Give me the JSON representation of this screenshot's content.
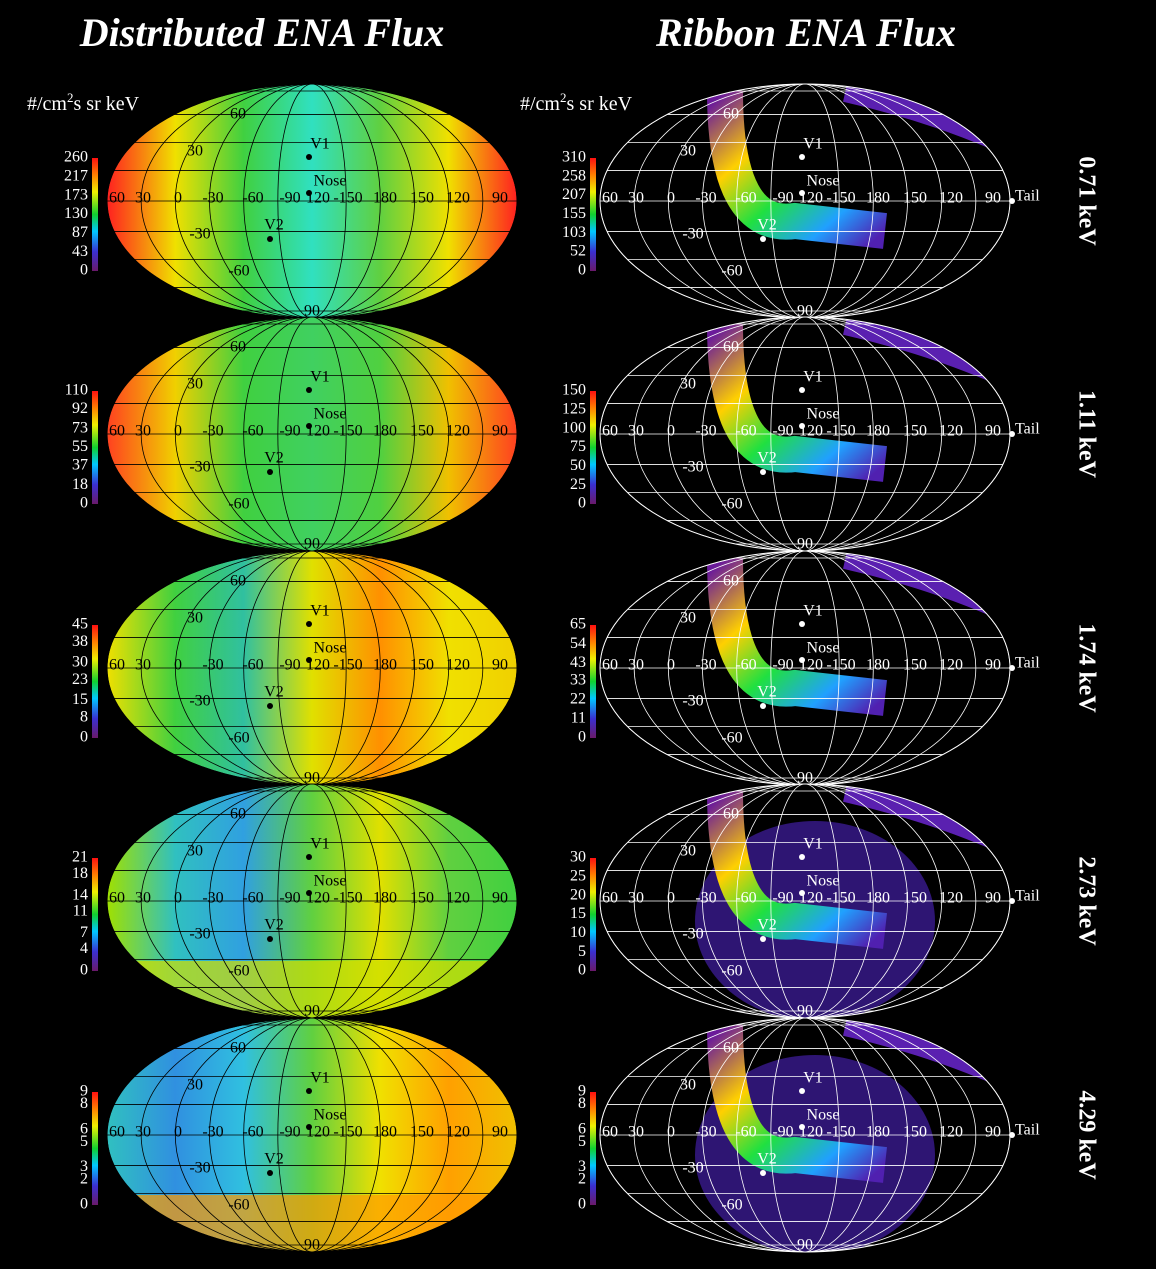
{
  "header": {
    "left_title": "Distributed ENA Flux",
    "right_title": "Ribbon ENA Flux",
    "unit": {
      "prefix": "#/cm",
      "sup": "2",
      "suffix": "s sr keV"
    }
  },
  "map_labels": {
    "longitudes": [
      "60",
      "30",
      "0",
      "-30",
      "-60",
      "-90",
      "120",
      "-150",
      "180",
      "150",
      "120",
      "90"
    ],
    "latitudes": [
      "60",
      "30",
      "-30",
      "-60",
      "90"
    ],
    "v1": "V1",
    "v2": "V2",
    "nose": "Nose",
    "tail": "Tail"
  },
  "rows": [
    {
      "energy": "0.71 keV",
      "left_ticks": [
        0,
        43,
        87,
        130,
        173,
        217,
        260
      ],
      "right_ticks": [
        0,
        52,
        103,
        155,
        207,
        258,
        310
      ]
    },
    {
      "energy": "1.11 keV",
      "left_ticks": [
        0,
        18,
        37,
        55,
        73,
        92,
        110
      ],
      "right_ticks": [
        0,
        25,
        50,
        75,
        100,
        125,
        150
      ]
    },
    {
      "energy": "1.74 keV",
      "left_ticks": [
        0,
        8,
        15,
        23,
        30,
        38,
        45
      ],
      "right_ticks": [
        0,
        11,
        22,
        33,
        43,
        54,
        65
      ]
    },
    {
      "energy": "2.73 keV",
      "left_ticks": [
        0,
        4,
        7,
        11,
        14,
        18,
        21
      ],
      "right_ticks": [
        0,
        5,
        10,
        15,
        20,
        25,
        30
      ]
    },
    {
      "energy": "4.29 keV",
      "left_ticks": [
        0,
        2,
        3,
        5,
        6,
        8,
        9
      ],
      "right_ticks": [
        0,
        2,
        3,
        5,
        6,
        8,
        9
      ]
    }
  ]
}
